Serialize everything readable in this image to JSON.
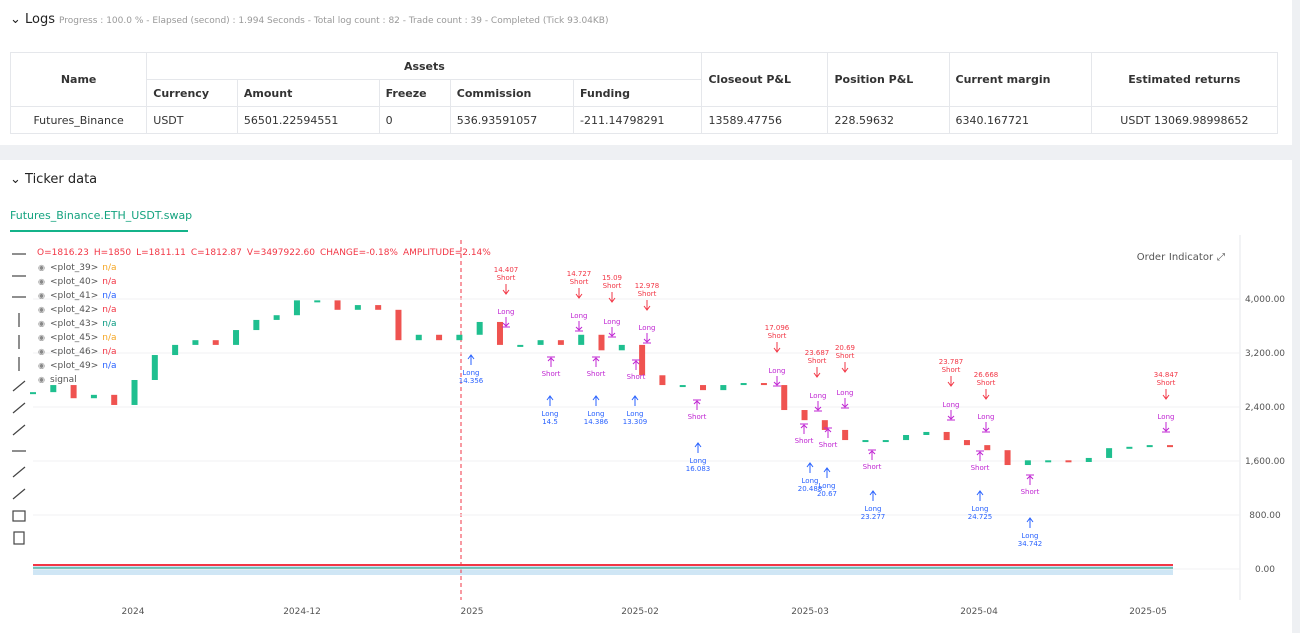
{
  "logs": {
    "title": "Logs",
    "summary": "Progress : 100.0 % - Elapsed (second) : 1.994 Seconds - Total log count : 82 - Trade count : 39 - Completed (Tick 93.04KB)",
    "table": {
      "headers": [
        "Name",
        "Assets",
        "Closeout P&L",
        "Position P&L",
        "Current margin",
        "Estimated returns"
      ],
      "subheaders": [
        "Currency",
        "Amount",
        "Freeze",
        "Commission",
        "Funding"
      ],
      "rows": [
        [
          "Futures_Binance",
          "USDT",
          "56501.22594551",
          "0",
          "536.93591057",
          "-211.14798291",
          "13589.47756",
          "228.59632",
          "6340.167721",
          "USDT 13069.98998652"
        ]
      ]
    }
  },
  "ticker": {
    "title": "Ticker data",
    "tab": "Futures_Binance.ETH_USDT.swap",
    "buttons": [
      "Order",
      "Indicator"
    ]
  },
  "chart_data": {
    "type": "candlestick",
    "ohlc_legend": [
      "O=1816.23",
      "H=1850",
      "L=1811.11",
      "C=1812.87",
      "V=3497922.60",
      "CHANGE=-0.18%",
      "AMPLITUDE=2.14%"
    ],
    "plots": [
      {
        "name": "<plot_39>",
        "value": "n/a",
        "color": "#f5a623"
      },
      {
        "name": "<plot_40>",
        "value": "n/a",
        "color": "#f23645"
      },
      {
        "name": "<plot_41>",
        "value": "n/a",
        "color": "#2962ff"
      },
      {
        "name": "<plot_42>",
        "value": "n/a",
        "color": "#f23645"
      },
      {
        "name": "<plot_43>",
        "value": "n/a",
        "color": "#089981"
      },
      {
        "name": "<plot_45>",
        "value": "n/a",
        "color": "#f5a623"
      },
      {
        "name": "<plot_46>",
        "value": "n/a",
        "color": "#f23645"
      },
      {
        "name": "<plot_49>",
        "value": "n/a",
        "color": "#2962ff"
      },
      {
        "name": "signal"
      }
    ],
    "x_labels": [
      "2024",
      "2024-12",
      "2025",
      "2025-02",
      "2025-03",
      "2025-04",
      "2025-05"
    ],
    "close": [
      2620,
      2725,
      2530,
      2580,
      2430,
      2800,
      3170,
      3320,
      3390,
      3320,
      3540,
      3690,
      3760,
      3980,
      3980,
      3840,
      3910,
      3840,
      3390,
      3470,
      3390,
      3470,
      3660,
      3320,
      3320,
      3390,
      3320,
      3470,
      3240,
      3320,
      2870,
      2725,
      2725,
      2650,
      2725,
      2755,
      2725,
      2355,
      2205,
      2060,
      1910,
      1910,
      1910,
      1985,
      2030,
      1910,
      1835,
      1760,
      1540,
      1610,
      1610,
      1585,
      1645,
      1790,
      1810,
      1835,
      1812.87
    ],
    "ylim": [
      -460,
      4830
    ],
    "yticks": [
      {
        "value": 0,
        "label": "0.00"
      },
      {
        "value": 800,
        "label": "800.00"
      },
      {
        "value": 1600,
        "label": "1,600.00"
      },
      {
        "value": 2400,
        "label": "2,400.00"
      },
      {
        "value": 3200,
        "label": "3,200.00"
      },
      {
        "value": 4000,
        "label": "4,000.00"
      }
    ],
    "grid": true,
    "up_color": "#1fbf8f",
    "down_color": "#ef5350",
    "signals": [
      {
        "text": "Long",
        "value": 14.356
      },
      {
        "text": "Long",
        "value": 14.5
      },
      {
        "text": "Long",
        "value": 14.386
      },
      {
        "text": "Long",
        "value": 13.309
      },
      {
        "text": "Long",
        "value": 16.083
      },
      {
        "text": "Long",
        "value": 20.488
      },
      {
        "text": "Long",
        "value": 20.67
      },
      {
        "text": "Long",
        "value": 23.277
      },
      {
        "text": "Long",
        "value": 24.725
      },
      {
        "text": "Long",
        "value": 34.742
      },
      {
        "text": "Short",
        "value": 14.407
      },
      {
        "text": "Short",
        "value": 14.727
      },
      {
        "text": "Short",
        "value": 15.09
      },
      {
        "text": "Short",
        "value": 12.978
      },
      {
        "text": "Short",
        "value": 17.096
      },
      {
        "text": "Short",
        "value": 23.687
      },
      {
        "text": "Short",
        "value": 20.69
      },
      {
        "text": "Short",
        "value": 23.787
      },
      {
        "text": "Short",
        "value": 26.668
      },
      {
        "text": "Short",
        "value": 34.847
      }
    ],
    "markers": [
      "Long",
      "Long",
      "Long",
      "Long",
      "Long",
      "Long",
      "Long",
      "Long",
      "Long",
      "Long",
      "Short",
      "Short",
      "Short",
      "Short",
      "Short",
      "Short",
      "Short",
      "Short",
      "Short"
    ]
  }
}
